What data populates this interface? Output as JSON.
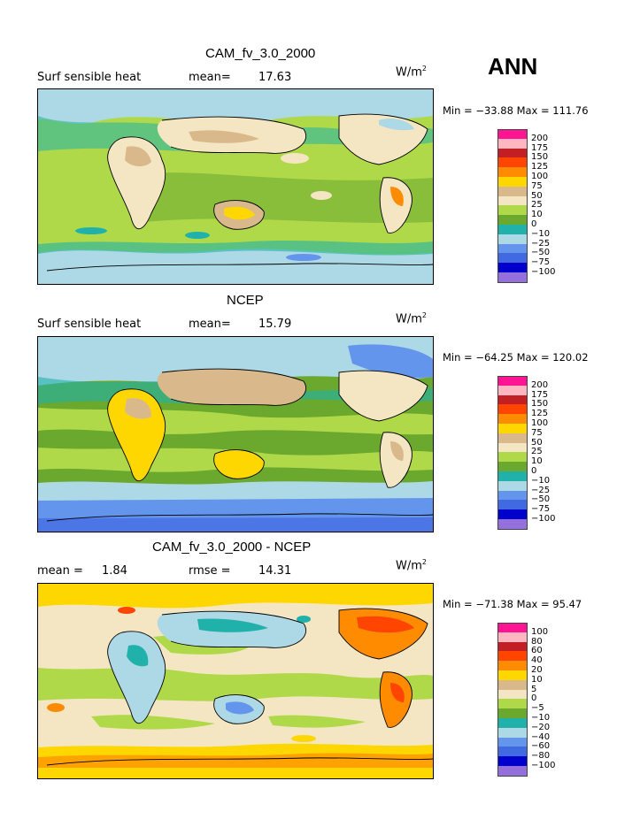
{
  "season": "ANN",
  "panels": [
    {
      "title": "CAM_fv_3.0_2000",
      "left_label": "Surf sensible heat",
      "stat1_label": "mean=",
      "stat1_value": "17.63",
      "stat2_label": "",
      "stat2_value": "",
      "units": "W/m",
      "units_sup": "2",
      "minmax": "Min = −33.88 Max = 111.76",
      "levels": [
        "200",
        "175",
        "150",
        "125",
        "100",
        "75",
        "50",
        "25",
        "10",
        "0",
        "−10",
        "−25",
        "−50",
        "−75",
        "−100"
      ]
    },
    {
      "title": "NCEP",
      "left_label": "Surf sensible heat",
      "stat1_label": "mean=",
      "stat1_value": "15.79",
      "stat2_label": "",
      "stat2_value": "",
      "units": "W/m",
      "units_sup": "2",
      "minmax": "Min = −64.25 Max = 120.02",
      "levels": [
        "200",
        "175",
        "150",
        "125",
        "100",
        "75",
        "50",
        "25",
        "10",
        "0",
        "−10",
        "−25",
        "−50",
        "−75",
        "−100"
      ]
    },
    {
      "title": "CAM_fv_3.0_2000 - NCEP",
      "left_label": "mean =",
      "stat1_label": "",
      "stat1_value": "1.84",
      "stat2_label": "rmse =",
      "stat2_value": "14.31",
      "units": "W/m",
      "units_sup": "2",
      "minmax": "Min = −71.38 Max =  95.47",
      "levels": [
        "100",
        "80",
        "60",
        "40",
        "20",
        "10",
        "5",
        "0",
        "−5",
        "−10",
        "−20",
        "−40",
        "−60",
        "−80",
        "−100"
      ]
    }
  ],
  "colors": {
    "legend": [
      "#ff1493",
      "#ffb6c1",
      "#c21f25",
      "#ff4500",
      "#ff8c00",
      "#ffd700",
      "#d9b88c",
      "#f5e6c3",
      "#b0d94a",
      "#6aa82e",
      "#20b2aa",
      "#add8e6",
      "#6495ed",
      "#4169e1",
      "#0000cd",
      "#9370db"
    ]
  }
}
